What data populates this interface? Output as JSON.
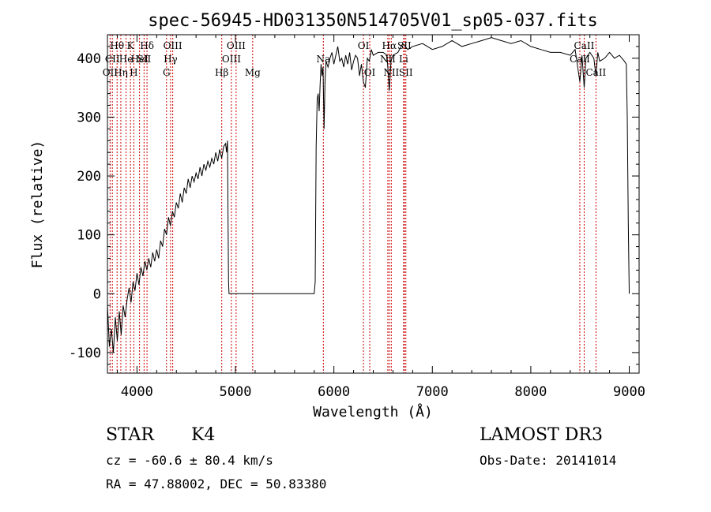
{
  "chart_data": {
    "type": "line",
    "title": "spec-56945-HD031350N514705V01_sp05-037.fits",
    "xlabel": "Wavelength (Å)",
    "ylabel": "Flux (relative)",
    "xlim": [
      3700,
      9100
    ],
    "ylim": [
      -135,
      440
    ],
    "xticks": [
      4000,
      5000,
      6000,
      7000,
      8000,
      9000
    ],
    "yticks": [
      -100,
      0,
      100,
      200,
      300,
      400
    ],
    "grid": false,
    "series": [
      {
        "x": [
          3700,
          3720,
          3740,
          3760,
          3780,
          3800,
          3820,
          3840,
          3860,
          3880,
          3900,
          3920,
          3940,
          3960,
          3980,
          4000,
          4020,
          4040,
          4060,
          4080,
          4100,
          4120,
          4140,
          4160,
          4180,
          4200,
          4220,
          4240,
          4260,
          4280,
          4300,
          4320,
          4340,
          4360,
          4380,
          4400,
          4420,
          4440,
          4460,
          4480,
          4500,
          4520,
          4540,
          4560,
          4580,
          4600,
          4620,
          4640,
          4660,
          4680,
          4700,
          4720,
          4740,
          4760,
          4780,
          4800,
          4820,
          4840,
          4860,
          4880,
          4900,
          4910,
          4920,
          4925,
          4930,
          4935,
          4940,
          5000,
          5200,
          5400,
          5600,
          5800,
          5810,
          5820,
          5830,
          5840,
          5850,
          5860,
          5870,
          5880,
          5890,
          5900,
          5910,
          5920,
          5940,
          5960,
          5980,
          6000,
          6020,
          6040,
          6060,
          6080,
          6100,
          6120,
          6140,
          6160,
          6180,
          6200,
          6220,
          6240,
          6260,
          6280,
          6300,
          6320,
          6340,
          6360,
          6380,
          6400,
          6450,
          6500,
          6540,
          6563,
          6580,
          6600,
          6650,
          6700,
          6750,
          6800,
          6900,
          7000,
          7100,
          7200,
          7300,
          7400,
          7500,
          7600,
          7700,
          7800,
          7900,
          8000,
          8100,
          8200,
          8300,
          8400,
          8450,
          8498,
          8520,
          8542,
          8560,
          8600,
          8640,
          8662,
          8680,
          8700,
          8750,
          8800,
          8850,
          8900,
          8950,
          8970,
          8980,
          8990,
          9000
        ],
        "y": [
          -20,
          -90,
          -60,
          -100,
          -40,
          -80,
          -30,
          -70,
          -20,
          -40,
          -10,
          10,
          -15,
          20,
          5,
          35,
          15,
          45,
          30,
          55,
          40,
          60,
          45,
          70,
          55,
          75,
          60,
          90,
          80,
          110,
          100,
          130,
          115,
          140,
          130,
          155,
          145,
          170,
          155,
          180,
          170,
          195,
          180,
          200,
          190,
          205,
          195,
          215,
          200,
          220,
          210,
          225,
          215,
          230,
          220,
          240,
          225,
          245,
          230,
          250,
          255,
          240,
          260,
          120,
          20,
          0,
          0,
          0,
          0,
          0,
          0,
          0,
          20,
          250,
          330,
          340,
          310,
          355,
          390,
          370,
          385,
          280,
          360,
          395,
          385,
          400,
          410,
          390,
          405,
          420,
          395,
          400,
          385,
          405,
          390,
          410,
          380,
          395,
          405,
          400,
          370,
          390,
          360,
          350,
          400,
          395,
          415,
          405,
          410,
          410,
          405,
          345,
          395,
          405,
          410,
          425,
          415,
          420,
          425,
          415,
          420,
          430,
          420,
          425,
          430,
          435,
          430,
          425,
          430,
          420,
          415,
          410,
          410,
          405,
          415,
          360,
          405,
          350,
          400,
          410,
          400,
          370,
          410,
          395,
          400,
          410,
          400,
          405,
          395,
          390,
          300,
          120,
          0
        ]
      }
    ],
    "line_markers": [
      {
        "label": "Hθ",
        "x": 3798,
        "row": 1
      },
      {
        "label": "CII",
        "x": 3750,
        "row": 2
      },
      {
        "label": "OII",
        "x": 3727,
        "row": 3
      },
      {
        "label": "Hη",
        "x": 3836,
        "row": 3
      },
      {
        "label": "He",
        "x": 3889,
        "row": 2
      },
      {
        "label": "K",
        "x": 3934,
        "row": 1
      },
      {
        "label": "H",
        "x": 3968,
        "row": 3
      },
      {
        "label": "HeI",
        "x": 4026,
        "row": 2
      },
      {
        "label": "Hδ",
        "x": 4102,
        "row": 1
      },
      {
        "label": "SII",
        "x": 4072,
        "row": 2
      },
      {
        "label": "G",
        "x": 4300,
        "row": 3
      },
      {
        "label": "OIII",
        "x": 4363,
        "row": 1
      },
      {
        "label": "Hγ",
        "x": 4341,
        "row": 2
      },
      {
        "label": "Hβ",
        "x": 4861,
        "row": 3
      },
      {
        "label": "OIII",
        "x": 4959,
        "row": 2
      },
      {
        "label": "OIII",
        "x": 5007,
        "row": 1
      },
      {
        "label": "Mg",
        "x": 5175,
        "row": 3
      },
      {
        "label": "Na",
        "x": 5893,
        "row": 2
      },
      {
        "label": "OI",
        "x": 6300,
        "row": 1
      },
      {
        "label": "OI",
        "x": 6364,
        "row": 3
      },
      {
        "label": "Hα",
        "x": 6563,
        "row": 1
      },
      {
        "label": "NII",
        "x": 6583,
        "row": 3
      },
      {
        "label": "SII",
        "x": 6716,
        "row": 1
      },
      {
        "label": "SII",
        "x": 6731,
        "row": 3
      },
      {
        "label": "NII",
        "x": 6548,
        "row": 2
      },
      {
        "label": "Li",
        "x": 6708,
        "row": 2
      },
      {
        "label": "CaII",
        "x": 8542,
        "row": 1
      },
      {
        "label": "CaII",
        "x": 8498,
        "row": 2
      },
      {
        "label": "CaII",
        "x": 8662,
        "row": 3
      }
    ]
  },
  "info": {
    "class_label": "STAR",
    "subclass": "K4",
    "survey": "LAMOST DR3",
    "cz": "cz = -60.6 ± 80.4 km/s",
    "obs_date": "Obs-Date: 20141014",
    "coords": "RA =  47.88002, DEC =  50.83380"
  }
}
